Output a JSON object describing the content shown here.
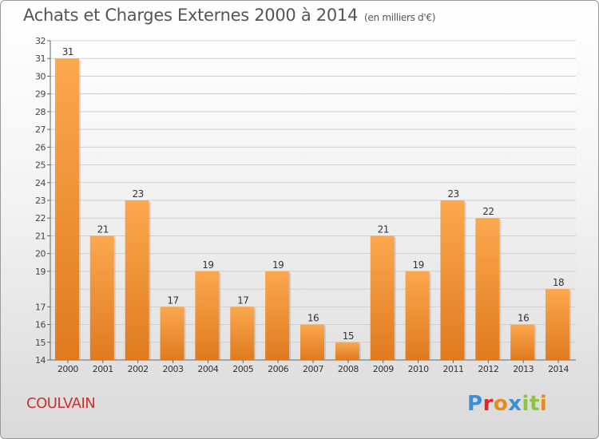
{
  "header": {
    "title": "Achats et Charges Externes 2000 à 2014",
    "unit": "(en milliers d'€)"
  },
  "footer": {
    "commune": "COULVAIN",
    "logo_text": "Proxiti"
  },
  "colors": {
    "bar_light": "#fba84e",
    "bar_dark": "#e07a1f",
    "commune": "#c83232",
    "logo": [
      "#3a8fd6",
      "#e3262e",
      "#e98a1b",
      "#3a8fd6",
      "#8cc63f",
      "#8cc63f",
      "#e98a1b"
    ]
  },
  "chart_data": {
    "type": "bar",
    "title": "Achats et Charges Externes 2000 à 2014",
    "subtitle": "(en milliers d'€)",
    "xlabel": "",
    "ylabel": "",
    "categories": [
      "2000",
      "2001",
      "2002",
      "2003",
      "2004",
      "2005",
      "2006",
      "2007",
      "2008",
      "2009",
      "2010",
      "2011",
      "2012",
      "2013",
      "2014"
    ],
    "values": [
      31,
      21,
      23,
      17,
      19,
      17,
      19,
      16,
      15,
      21,
      19,
      23,
      22,
      16,
      18
    ],
    "ylim": [
      14,
      32
    ],
    "yticks": [
      14,
      15,
      16,
      17,
      19,
      20,
      21,
      22,
      23,
      24,
      25,
      26,
      27,
      28,
      29,
      30,
      31,
      32
    ],
    "grid": true,
    "legend": "none"
  }
}
